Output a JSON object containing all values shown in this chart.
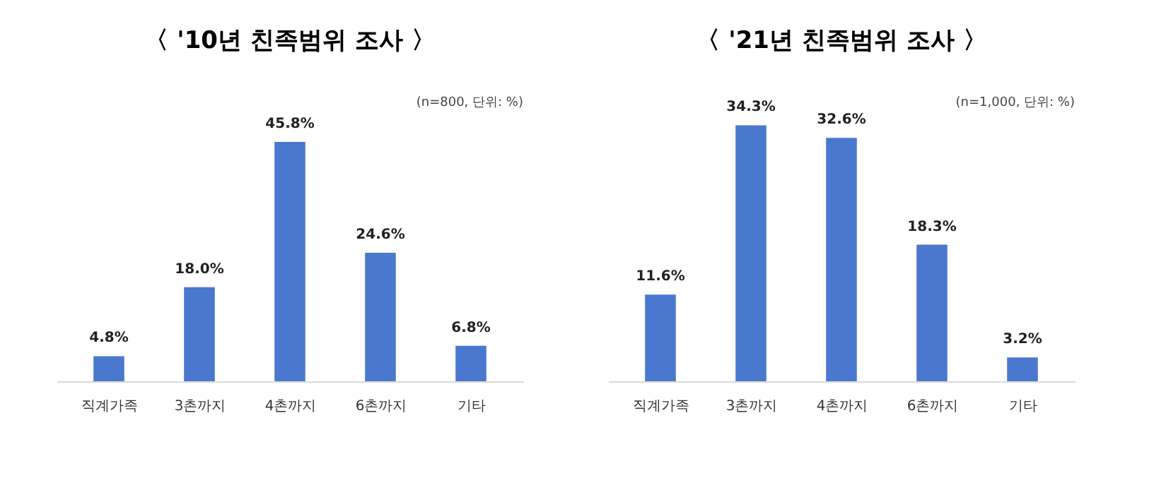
{
  "chart_data": [
    {
      "type": "bar",
      "title": "〈 '10년 친족범위 조사 〉",
      "annotations": [
        "(n=800, 단위: %)"
      ],
      "categories": [
        "직계가족",
        "3촌까지",
        "4촌까지",
        "6촌까지",
        "기타"
      ],
      "values": [
        4.8,
        18.0,
        45.8,
        24.6,
        6.8
      ],
      "value_labels": [
        "4.8%",
        "18.0%",
        "45.8%",
        "24.6%",
        "6.8%"
      ],
      "color": "#4a78cf",
      "tick_labels": "x"
    },
    {
      "type": "bar",
      "title": "〈 '21년 친족범위 조사 〉",
      "annotations": [
        "(n=1,000, 단위: %)"
      ],
      "categories": [
        "직계가족",
        "3촌까지",
        "4촌까지",
        "6촌까지",
        "기타"
      ],
      "values": [
        11.6,
        34.3,
        32.6,
        18.3,
        3.2
      ],
      "value_labels": [
        "11.6%",
        "34.3%",
        "32.6%",
        "18.3%",
        "3.2%"
      ],
      "color": "#4a78cf",
      "tick_labels": "x"
    }
  ]
}
